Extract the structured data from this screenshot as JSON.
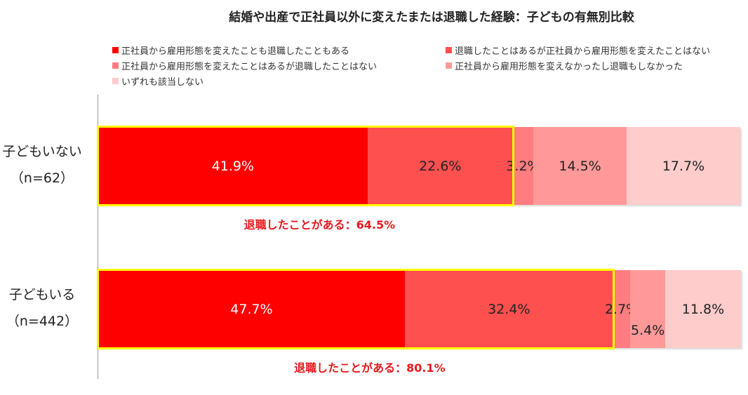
{
  "chart_data": {
    "type": "bar",
    "orientation": "horizontal-stacked-100",
    "title": "結婚や出産で正社員以外に変えたまたは退職した経験：子どもの有無別比較",
    "categories": [
      [
        "子どもいない",
        "（n=62）"
      ],
      [
        "子どもいる",
        "（n=442）"
      ]
    ],
    "series": [
      {
        "name": "正社員から雇用形態を変えたことも退職したこともある",
        "color": "#ff0000",
        "values": [
          41.9,
          47.7
        ]
      },
      {
        "name": "退職したことはあるが正社員から雇用形態を変えたことはない",
        "color": "#ff5050",
        "values": [
          22.6,
          32.4
        ]
      },
      {
        "name": "正社員から雇用形態を変えたことはあるが退職したことはない",
        "color": "#ff7c80",
        "values": [
          3.2,
          2.7
        ]
      },
      {
        "name": "正社員から雇用形態を変えなかったし退職もしなかった",
        "color": "#ff9999",
        "values": [
          14.5,
          5.4
        ]
      },
      {
        "name": "いずれも該当しない",
        "color": "#ffcccc",
        "values": [
          17.7,
          11.8
        ]
      }
    ],
    "annotations": [
      "退職したことがある：64.5%",
      "退職したことがある：80.1%"
    ],
    "highlight_color": "#ffff00",
    "xlim": [
      0,
      100
    ],
    "legend": "top",
    "grid": false
  }
}
